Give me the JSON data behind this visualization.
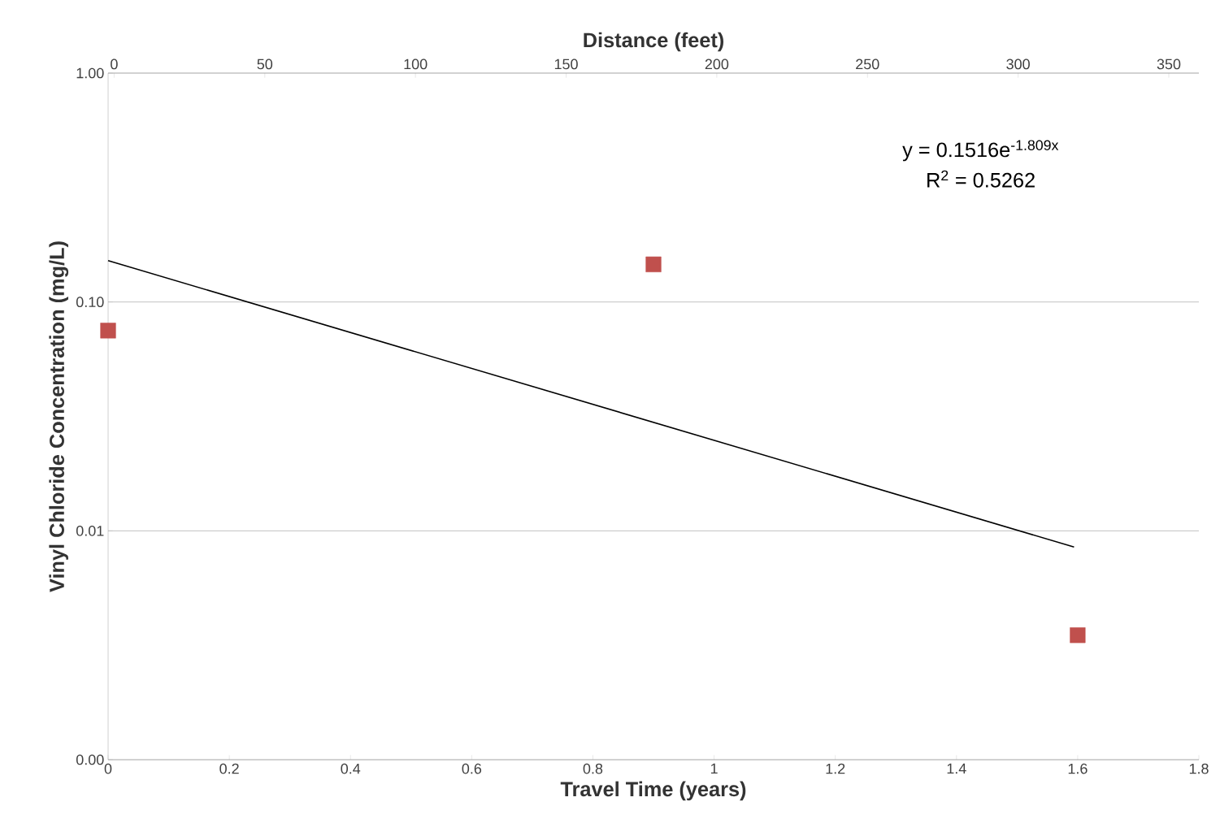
{
  "chart_data": {
    "type": "scatter",
    "xlabel": "Travel Time (years)",
    "x2label": "Distance (feet)",
    "ylabel": "Vinyl Chloride Concentration (mg/L)",
    "x": [
      0,
      0.9,
      1.6
    ],
    "series": [
      {
        "color": "#c0504d",
        "marker": "square",
        "values": [
          0.075,
          0.146,
          0.0035
        ]
      },
      {
        "type": "line",
        "color": "#000000",
        "marker": "none",
        "x": [
          0,
          1.594
        ],
        "values": [
          0.1516,
          0.0085
        ]
      }
    ],
    "annotations": [
      "y = 0.1516e$^{-1.809x}$",
      "R$^{2}$ = 0.5262"
    ],
    "log": "y",
    "grid": "y",
    "xlim": [
      0,
      1.8
    ],
    "xticks": [
      0,
      0.2,
      0.4,
      0.6,
      0.8,
      1,
      1.2,
      1.4,
      1.6,
      1.8
    ],
    "x2lim": [
      -2,
      360
    ],
    "x2ticks": [
      0,
      50,
      100,
      150,
      200,
      250,
      300,
      350
    ],
    "ylim": [
      0.001,
      1
    ],
    "yticks": [
      {
        "value": 0.001,
        "label": "0.00"
      },
      {
        "value": 0.01,
        "label": "0.01"
      },
      {
        "value": 0.1,
        "label": "0.10"
      },
      {
        "value": 1,
        "label": "1.00"
      }
    ]
  }
}
